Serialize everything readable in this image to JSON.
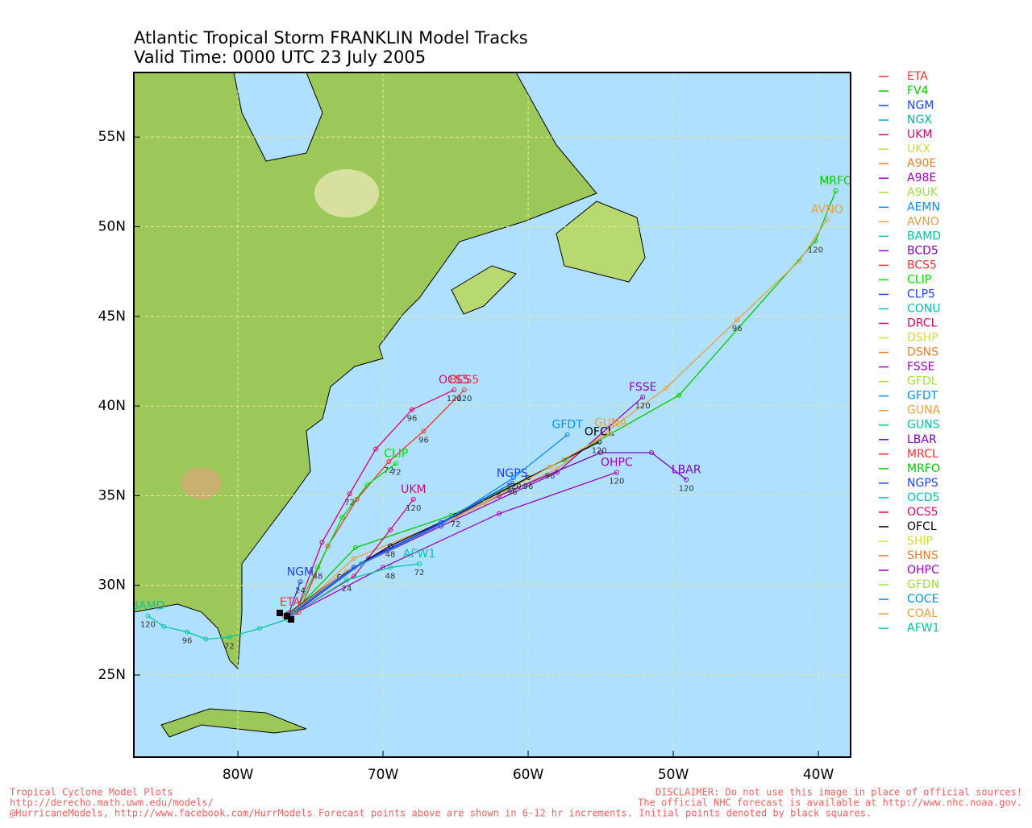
{
  "chart_data": {
    "type": "map",
    "title": "Atlantic Tropical Storm FRANKLIN Model Tracks",
    "subtitle": "Valid Time: 0000 UTC 23 July 2005",
    "xlim": [
      -87.17,
      -37.78
    ],
    "ylim": [
      20.42,
      58.6
    ],
    "xticks": [
      {
        "value": -80,
        "label": "80W"
      },
      {
        "value": -70,
        "label": "70W"
      },
      {
        "value": -60,
        "label": "60W"
      },
      {
        "value": -50,
        "label": "50W"
      },
      {
        "value": -40,
        "label": "40W"
      }
    ],
    "yticks": [
      {
        "value": 25,
        "label": "25N"
      },
      {
        "value": 30,
        "label": "30N"
      },
      {
        "value": 35,
        "label": "35N"
      },
      {
        "value": 40,
        "label": "40N"
      },
      {
        "value": 45,
        "label": "45N"
      },
      {
        "value": 50,
        "label": "50N"
      },
      {
        "value": 55,
        "label": "55N"
      }
    ],
    "grid": true,
    "legend": [
      {
        "name": "ETA",
        "color": "#ff3030"
      },
      {
        "name": "FV4",
        "color": "#00cc00"
      },
      {
        "name": "NGM",
        "color": "#2040ff"
      },
      {
        "name": "NGX",
        "color": "#00b0b0"
      },
      {
        "name": "UKM",
        "color": "#e0007a"
      },
      {
        "name": "UKX",
        "color": "#d8d840"
      },
      {
        "name": "A90E",
        "color": "#e88030"
      },
      {
        "name": "A98E",
        "color": "#a000c0"
      },
      {
        "name": "A9UK",
        "color": "#a0e040"
      },
      {
        "name": "AEMN",
        "color": "#0090ff"
      },
      {
        "name": "AVNO",
        "color": "#e8a040"
      },
      {
        "name": "BAMD",
        "color": "#00c8a0"
      },
      {
        "name": "BCD5",
        "color": "#8000c0"
      },
      {
        "name": "BCS5",
        "color": "#ff3030"
      },
      {
        "name": "CLIP",
        "color": "#00dd00"
      },
      {
        "name": "CLP5",
        "color": "#2040ff"
      },
      {
        "name": "CONU",
        "color": "#00c0c0"
      },
      {
        "name": "DRCL",
        "color": "#e0006a"
      },
      {
        "name": "DSHP",
        "color": "#d8d840"
      },
      {
        "name": "DSNS",
        "color": "#e88030"
      },
      {
        "name": "FSSE",
        "color": "#a000c0"
      },
      {
        "name": "GFDL",
        "color": "#a0e040"
      },
      {
        "name": "GFDT",
        "color": "#0090ff"
      },
      {
        "name": "GUNA",
        "color": "#e8a040"
      },
      {
        "name": "GUNS",
        "color": "#00c8a0"
      },
      {
        "name": "LBAR",
        "color": "#8000c0"
      },
      {
        "name": "MRCL",
        "color": "#ff3030"
      },
      {
        "name": "MRFO",
        "color": "#00cc00"
      },
      {
        "name": "NGPS",
        "color": "#2040ff"
      },
      {
        "name": "OCD5",
        "color": "#00c0c0"
      },
      {
        "name": "OCS5",
        "color": "#e0006a"
      },
      {
        "name": "OFCL",
        "color": "#000000"
      },
      {
        "name": "SHIP",
        "color": "#d8d840"
      },
      {
        "name": "SHNS",
        "color": "#e88030"
      },
      {
        "name": "OHPC",
        "color": "#a000c0"
      },
      {
        "name": "GFDN",
        "color": "#a0e040"
      },
      {
        "name": "COCE",
        "color": "#0090ff"
      },
      {
        "name": "COAL",
        "color": "#e8a040"
      },
      {
        "name": "AFW1",
        "color": "#00c8a0"
      }
    ],
    "series": [
      {
        "name": "MRFO",
        "color": "#00cc00",
        "lon": [
          -76.4,
          -71.9,
          -65.3,
          -57.5,
          -49.6,
          -40.2,
          -38.8
        ],
        "lat": [
          28.3,
          32.1,
          33.9,
          37.0,
          40.6,
          49.2,
          52.0
        ],
        "hour_labels": [
          null,
          null,
          null,
          null,
          null,
          "120",
          null
        ]
      },
      {
        "name": "AVNO",
        "color": "#e8a040",
        "lon": [
          -76.4,
          -72,
          -65,
          -58,
          -50.5,
          -45.6,
          -41.3,
          -39.4
        ],
        "lat": [
          28.3,
          31.5,
          33.8,
          36.5,
          41.0,
          44.8,
          48.1,
          50.4
        ],
        "hour_labels": [
          null,
          null,
          null,
          null,
          null,
          "96",
          null,
          null
        ]
      },
      {
        "name": "FSSE",
        "color": "#a000c0",
        "lon": [
          -76.4,
          -72,
          -66,
          -58,
          -52.1
        ],
        "lat": [
          28.3,
          31,
          33.3,
          36.3,
          40.5
        ],
        "hour_labels": [
          null,
          null,
          null,
          null,
          "120"
        ]
      },
      {
        "name": "LBAR",
        "color": "#8000c0",
        "lon": [
          -76.4,
          -71,
          -62,
          -55,
          -51.5,
          -49.1
        ],
        "lat": [
          28.3,
          31.5,
          35,
          37.4,
          37.4,
          35.9
        ],
        "hour_labels": [
          null,
          null,
          null,
          null,
          null,
          "120"
        ]
      },
      {
        "name": "OHPC",
        "color": "#a000c0",
        "lon": [
          -76.4,
          -70,
          -62,
          -53.9
        ],
        "lat": [
          28.3,
          31,
          34,
          36.3
        ],
        "hour_labels": [
          null,
          null,
          null,
          "120"
        ]
      },
      {
        "name": "OCS5",
        "color": "#e0006a",
        "lon": [
          -76,
          -74.2,
          -72.3,
          -70.5,
          -68,
          -65.1
        ],
        "lat": [
          28.5,
          32.4,
          35.1,
          37.6,
          39.8,
          40.9
        ],
        "hour_labels": [
          null,
          null,
          "72",
          null,
          "96",
          "120"
        ]
      },
      {
        "name": "BCS5",
        "color": "#ff3030",
        "lon": [
          -75.8,
          -73.8,
          -71.8,
          -69.6,
          -67.2,
          -64.4
        ],
        "lat": [
          28.5,
          32.2,
          34.8,
          36.9,
          38.6,
          40.9
        ],
        "hour_labels": [
          null,
          null,
          null,
          "72",
          "96",
          "120"
        ]
      },
      {
        "name": "CLIP",
        "color": "#00dd00",
        "lon": [
          -76,
          -74.5,
          -72.8,
          -71.1,
          -69.1
        ],
        "lat": [
          28.5,
          31,
          33.8,
          35.6,
          36.8
        ],
        "hour_labels": [
          null,
          "48",
          null,
          null,
          "72"
        ]
      },
      {
        "name": "UKM",
        "color": "#e0007a",
        "lon": [
          -76,
          -72,
          -69.5,
          -67.9
        ],
        "lat": [
          28.5,
          30.5,
          33.1,
          34.8
        ],
        "hour_labels": [
          null,
          null,
          null,
          "120"
        ]
      },
      {
        "name": "BAMD",
        "color": "#00c8a0",
        "lon": [
          -76.6,
          -78.5,
          -80.6,
          -82.2,
          -83.5,
          -85.1,
          -86.2
        ],
        "lat": [
          28.1,
          27.6,
          27.1,
          27.0,
          27.4,
          27.7,
          28.3
        ],
        "hour_labels": [
          null,
          null,
          "72",
          null,
          "96",
          null,
          "120"
        ]
      },
      {
        "name": "OFCL",
        "color": "#000000",
        "lon": [
          -76.6,
          -73,
          -69.5,
          -65,
          -60,
          -55.1
        ],
        "lat": [
          28.4,
          30.5,
          32.2,
          33.9,
          36,
          38.0
        ],
        "hour_labels": [
          null,
          null,
          "48",
          "72",
          "96",
          "120"
        ]
      },
      {
        "name": "GUNA",
        "color": "#e8a040",
        "lon": [
          -76.5,
          -72.5,
          -68,
          -63,
          -58.5,
          -54.3
        ],
        "lat": [
          28.4,
          30.8,
          32.6,
          34.6,
          36.6,
          38.5
        ],
        "hour_labels": [
          null,
          null,
          null,
          null,
          "96",
          null
        ]
      },
      {
        "name": "NGPS",
        "color": "#2040ff",
        "lon": [
          -76.4,
          -72,
          -66,
          -61.1
        ],
        "lat": [
          28.4,
          31,
          33.5,
          35.7
        ],
        "hour_labels": [
          null,
          null,
          null,
          "96"
        ]
      },
      {
        "name": "GFDT",
        "color": "#0090ff",
        "lon": [
          -76.4,
          -71.5,
          -66,
          -61,
          -57.3
        ],
        "lat": [
          28.4,
          31.2,
          33.4,
          36.0,
          38.4
        ],
        "hour_labels": [
          null,
          null,
          null,
          "120",
          null
        ]
      },
      {
        "name": "AFW1",
        "color": "#00c8a0",
        "lon": [
          -76.2,
          -72.5,
          -69.5,
          -67.5
        ],
        "lat": [
          28.4,
          30.3,
          31.0,
          31.2
        ],
        "hour_labels": [
          null,
          "24",
          "48",
          "72"
        ]
      },
      {
        "name": "NGM",
        "color": "#2040ff",
        "lon": [
          -76.5,
          -75.7
        ],
        "lat": [
          28.4,
          30.2
        ],
        "hour_labels": [
          null,
          "24"
        ]
      },
      {
        "name": "ETA",
        "color": "#ff3030",
        "lon": [
          -76.8,
          -76.4
        ],
        "lat": [
          28.3,
          28.5
        ],
        "hour_labels": [
          null,
          null
        ]
      }
    ],
    "footer_left": [
      "Tropical Cyclone Model Plots",
      "http://derecho.math.uwm.edu/models/",
      "@HurricaneModels, http://www.facebook.com/HurrModels  Forecast points above are shown in 6-12 hr increments. Initial points denoted by black squares."
    ],
    "footer_right": [
      "DISCLAIMER: Do not use this image in place of official sources!",
      "The official NHC forecast is available at http://www.nhc.noaa.gov."
    ]
  }
}
